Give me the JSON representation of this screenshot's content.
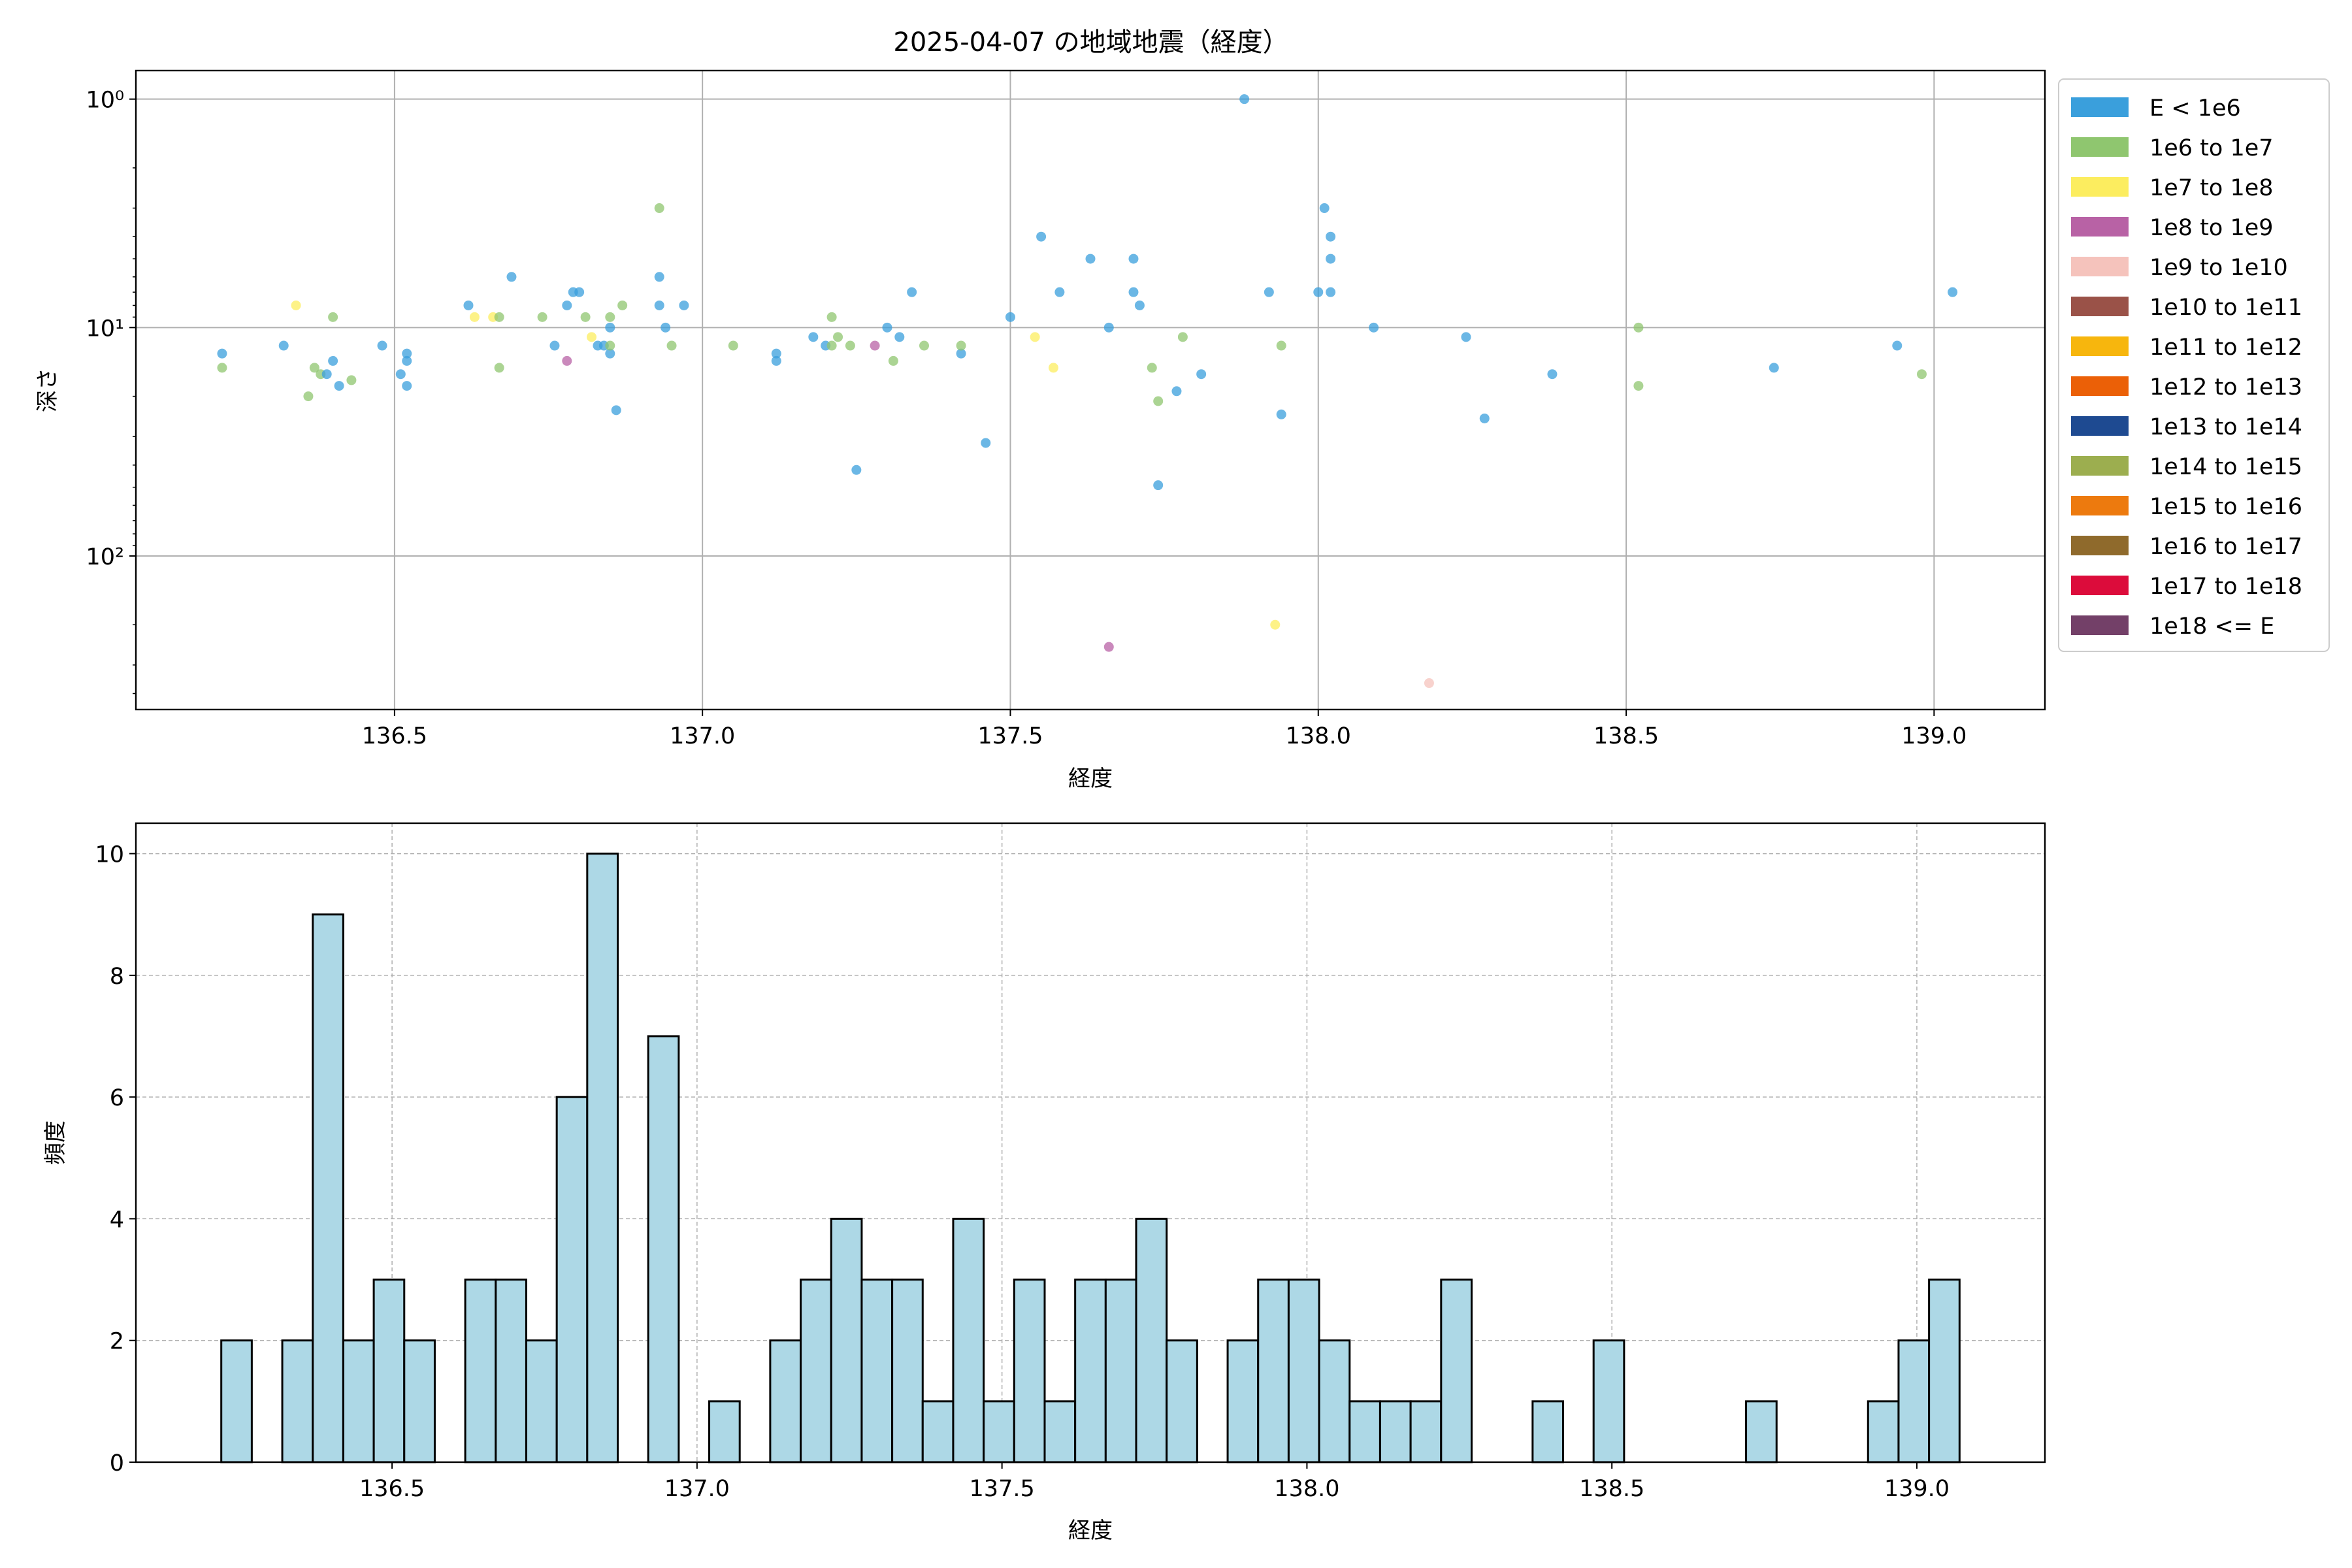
{
  "chart_data": [
    {
      "type": "scatter",
      "title": "2025-04-07 の地域地震（経度）",
      "xlabel": "経度",
      "ylabel": "深さ",
      "xlim": [
        136.08,
        139.18
      ],
      "ylim": [
        470,
        0.75
      ],
      "yscale": "log",
      "y_inverted": true,
      "xticks": [
        "136.5",
        "137.0",
        "137.5",
        "138.0",
        "138.5",
        "139.0"
      ],
      "yticks": [
        {
          "value": 1,
          "label": "10⁰"
        },
        {
          "value": 10,
          "label": "10¹"
        },
        {
          "value": 100,
          "label": "10²"
        }
      ],
      "grid": true,
      "legend": {
        "placement": "outside-right",
        "entries": [
          {
            "label": "E < 1e6",
            "color": "#3a9fdc"
          },
          {
            "label": "1e6 to 1e7",
            "color": "#8fc66f"
          },
          {
            "label": "1e7 to 1e8",
            "color": "#fced5f"
          },
          {
            "label": "1e8 to 1e9",
            "color": "#b862a5"
          },
          {
            "label": "1e9 to 1e10",
            "color": "#f5c3bc"
          },
          {
            "label": "1e10 to 1e11",
            "color": "#9a5248"
          },
          {
            "label": "1e11 to 1e12",
            "color": "#f7b60d"
          },
          {
            "label": "1e12 to 1e13",
            "color": "#eb6007"
          },
          {
            "label": "1e13 to 1e14",
            "color": "#1e4a91"
          },
          {
            "label": "1e14 to 1e15",
            "color": "#9cae4f"
          },
          {
            "label": "1e15 to 1e16",
            "color": "#ed7a0e"
          },
          {
            "label": "1e16 to 1e17",
            "color": "#8f6a2c"
          },
          {
            "label": "1e17 to 1e18",
            "color": "#dc0c3b"
          },
          {
            "label": "1e18 <= E",
            "color": "#734068"
          }
        ]
      },
      "points": [
        {
          "x": 136.22,
          "y": 13,
          "c": 0
        },
        {
          "x": 136.22,
          "y": 15,
          "c": 1
        },
        {
          "x": 136.32,
          "y": 12,
          "c": 0
        },
        {
          "x": 136.34,
          "y": 8,
          "c": 2
        },
        {
          "x": 136.36,
          "y": 20,
          "c": 1
        },
        {
          "x": 136.37,
          "y": 15,
          "c": 1
        },
        {
          "x": 136.38,
          "y": 16,
          "c": 1
        },
        {
          "x": 136.39,
          "y": 16,
          "c": 0
        },
        {
          "x": 136.4,
          "y": 14,
          "c": 0
        },
        {
          "x": 136.4,
          "y": 9,
          "c": 1
        },
        {
          "x": 136.41,
          "y": 18,
          "c": 0
        },
        {
          "x": 136.43,
          "y": 17,
          "c": 1
        },
        {
          "x": 136.48,
          "y": 12,
          "c": 0
        },
        {
          "x": 136.51,
          "y": 16,
          "c": 0
        },
        {
          "x": 136.52,
          "y": 14,
          "c": 0
        },
        {
          "x": 136.52,
          "y": 13,
          "c": 0
        },
        {
          "x": 136.52,
          "y": 18,
          "c": 0
        },
        {
          "x": 136.62,
          "y": 8,
          "c": 0
        },
        {
          "x": 136.63,
          "y": 9,
          "c": 2
        },
        {
          "x": 136.66,
          "y": 9,
          "c": 2
        },
        {
          "x": 136.67,
          "y": 9,
          "c": 1
        },
        {
          "x": 136.67,
          "y": 15,
          "c": 1
        },
        {
          "x": 136.69,
          "y": 6,
          "c": 0
        },
        {
          "x": 136.74,
          "y": 9,
          "c": 1
        },
        {
          "x": 136.76,
          "y": 12,
          "c": 0
        },
        {
          "x": 136.78,
          "y": 8,
          "c": 0
        },
        {
          "x": 136.78,
          "y": 14,
          "c": 3
        },
        {
          "x": 136.79,
          "y": 7,
          "c": 0
        },
        {
          "x": 136.8,
          "y": 7,
          "c": 0
        },
        {
          "x": 136.81,
          "y": 9,
          "c": 1
        },
        {
          "x": 136.82,
          "y": 11,
          "c": 2
        },
        {
          "x": 136.83,
          "y": 12,
          "c": 0
        },
        {
          "x": 136.84,
          "y": 12,
          "c": 0
        },
        {
          "x": 136.85,
          "y": 13,
          "c": 0
        },
        {
          "x": 136.85,
          "y": 9,
          "c": 1
        },
        {
          "x": 136.85,
          "y": 10,
          "c": 0
        },
        {
          "x": 136.85,
          "y": 12,
          "c": 1
        },
        {
          "x": 136.86,
          "y": 23,
          "c": 0
        },
        {
          "x": 136.87,
          "y": 8,
          "c": 1
        },
        {
          "x": 136.93,
          "y": 3,
          "c": 1
        },
        {
          "x": 136.93,
          "y": 6,
          "c": 0
        },
        {
          "x": 136.93,
          "y": 8,
          "c": 0
        },
        {
          "x": 136.94,
          "y": 10,
          "c": 0
        },
        {
          "x": 136.95,
          "y": 12,
          "c": 1
        },
        {
          "x": 136.97,
          "y": 8,
          "c": 0
        },
        {
          "x": 137.05,
          "y": 12,
          "c": 1
        },
        {
          "x": 137.12,
          "y": 13,
          "c": 0
        },
        {
          "x": 137.12,
          "y": 14,
          "c": 0
        },
        {
          "x": 137.18,
          "y": 11,
          "c": 0
        },
        {
          "x": 137.2,
          "y": 12,
          "c": 0
        },
        {
          "x": 137.21,
          "y": 9,
          "c": 1
        },
        {
          "x": 137.21,
          "y": 12,
          "c": 1
        },
        {
          "x": 137.22,
          "y": 11,
          "c": 1
        },
        {
          "x": 137.24,
          "y": 12,
          "c": 1
        },
        {
          "x": 137.25,
          "y": 42,
          "c": 0
        },
        {
          "x": 137.28,
          "y": 12,
          "c": 3
        },
        {
          "x": 137.3,
          "y": 10,
          "c": 0
        },
        {
          "x": 137.31,
          "y": 14,
          "c": 1
        },
        {
          "x": 137.32,
          "y": 11,
          "c": 0
        },
        {
          "x": 137.34,
          "y": 7,
          "c": 0
        },
        {
          "x": 137.36,
          "y": 12,
          "c": 1
        },
        {
          "x": 137.42,
          "y": 13,
          "c": 0
        },
        {
          "x": 137.42,
          "y": 12,
          "c": 1
        },
        {
          "x": 137.46,
          "y": 32,
          "c": 0
        },
        {
          "x": 137.5,
          "y": 9,
          "c": 0
        },
        {
          "x": 137.54,
          "y": 11,
          "c": 2
        },
        {
          "x": 137.55,
          "y": 4,
          "c": 0
        },
        {
          "x": 137.57,
          "y": 15,
          "c": 2
        },
        {
          "x": 137.58,
          "y": 7,
          "c": 0
        },
        {
          "x": 137.63,
          "y": 5,
          "c": 0
        },
        {
          "x": 137.66,
          "y": 10,
          "c": 0
        },
        {
          "x": 137.66,
          "y": 250,
          "c": 3
        },
        {
          "x": 137.7,
          "y": 5,
          "c": 0
        },
        {
          "x": 137.7,
          "y": 7,
          "c": 0
        },
        {
          "x": 137.71,
          "y": 8,
          "c": 0
        },
        {
          "x": 137.73,
          "y": 15,
          "c": 1
        },
        {
          "x": 137.74,
          "y": 49,
          "c": 0
        },
        {
          "x": 137.74,
          "y": 21,
          "c": 1
        },
        {
          "x": 137.77,
          "y": 19,
          "c": 0
        },
        {
          "x": 137.78,
          "y": 11,
          "c": 1
        },
        {
          "x": 137.81,
          "y": 16,
          "c": 0
        },
        {
          "x": 137.88,
          "y": 1,
          "c": 0
        },
        {
          "x": 137.92,
          "y": 7,
          "c": 0
        },
        {
          "x": 137.93,
          "y": 200,
          "c": 2
        },
        {
          "x": 137.94,
          "y": 24,
          "c": 0
        },
        {
          "x": 137.94,
          "y": 12,
          "c": 1
        },
        {
          "x": 138.0,
          "y": 7,
          "c": 0
        },
        {
          "x": 138.01,
          "y": 3,
          "c": 0
        },
        {
          "x": 138.02,
          "y": 5,
          "c": 0
        },
        {
          "x": 138.02,
          "y": 4,
          "c": 0
        },
        {
          "x": 138.02,
          "y": 7,
          "c": 0
        },
        {
          "x": 138.09,
          "y": 10,
          "c": 0
        },
        {
          "x": 138.18,
          "y": 360,
          "c": 4
        },
        {
          "x": 138.24,
          "y": 11,
          "c": 0
        },
        {
          "x": 138.27,
          "y": 25,
          "c": 0
        },
        {
          "x": 138.38,
          "y": 16,
          "c": 0
        },
        {
          "x": 138.52,
          "y": 10,
          "c": 1
        },
        {
          "x": 138.52,
          "y": 18,
          "c": 1
        },
        {
          "x": 138.74,
          "y": 15,
          "c": 0
        },
        {
          "x": 138.94,
          "y": 12,
          "c": 0
        },
        {
          "x": 138.98,
          "y": 16,
          "c": 1
        },
        {
          "x": 139.03,
          "y": 7,
          "c": 0
        }
      ]
    },
    {
      "type": "bar",
      "title": "",
      "xlabel": "経度",
      "ylabel": "頻度",
      "xlim": [
        136.08,
        139.21
      ],
      "ylim": [
        0,
        10.5
      ],
      "xticks": [
        "136.5",
        "137.0",
        "137.5",
        "138.0",
        "138.5",
        "139.0"
      ],
      "yticks": [
        "0",
        "2",
        "4",
        "6",
        "8",
        "10"
      ],
      "grid": true,
      "bar_color": "#add8e6",
      "bin_start": 136.22,
      "bin_width": 0.05,
      "values": [
        2,
        0,
        2,
        9,
        2,
        3,
        2,
        0,
        3,
        3,
        2,
        6,
        10,
        0,
        7,
        0,
        1,
        0,
        2,
        3,
        4,
        3,
        3,
        1,
        4,
        1,
        3,
        1,
        3,
        3,
        4,
        2,
        0,
        2,
        3,
        3,
        2,
        1,
        1,
        1,
        3,
        0,
        0,
        1,
        0,
        2,
        0,
        0,
        0,
        0,
        1,
        0,
        0,
        0,
        1,
        2,
        3
      ]
    }
  ]
}
